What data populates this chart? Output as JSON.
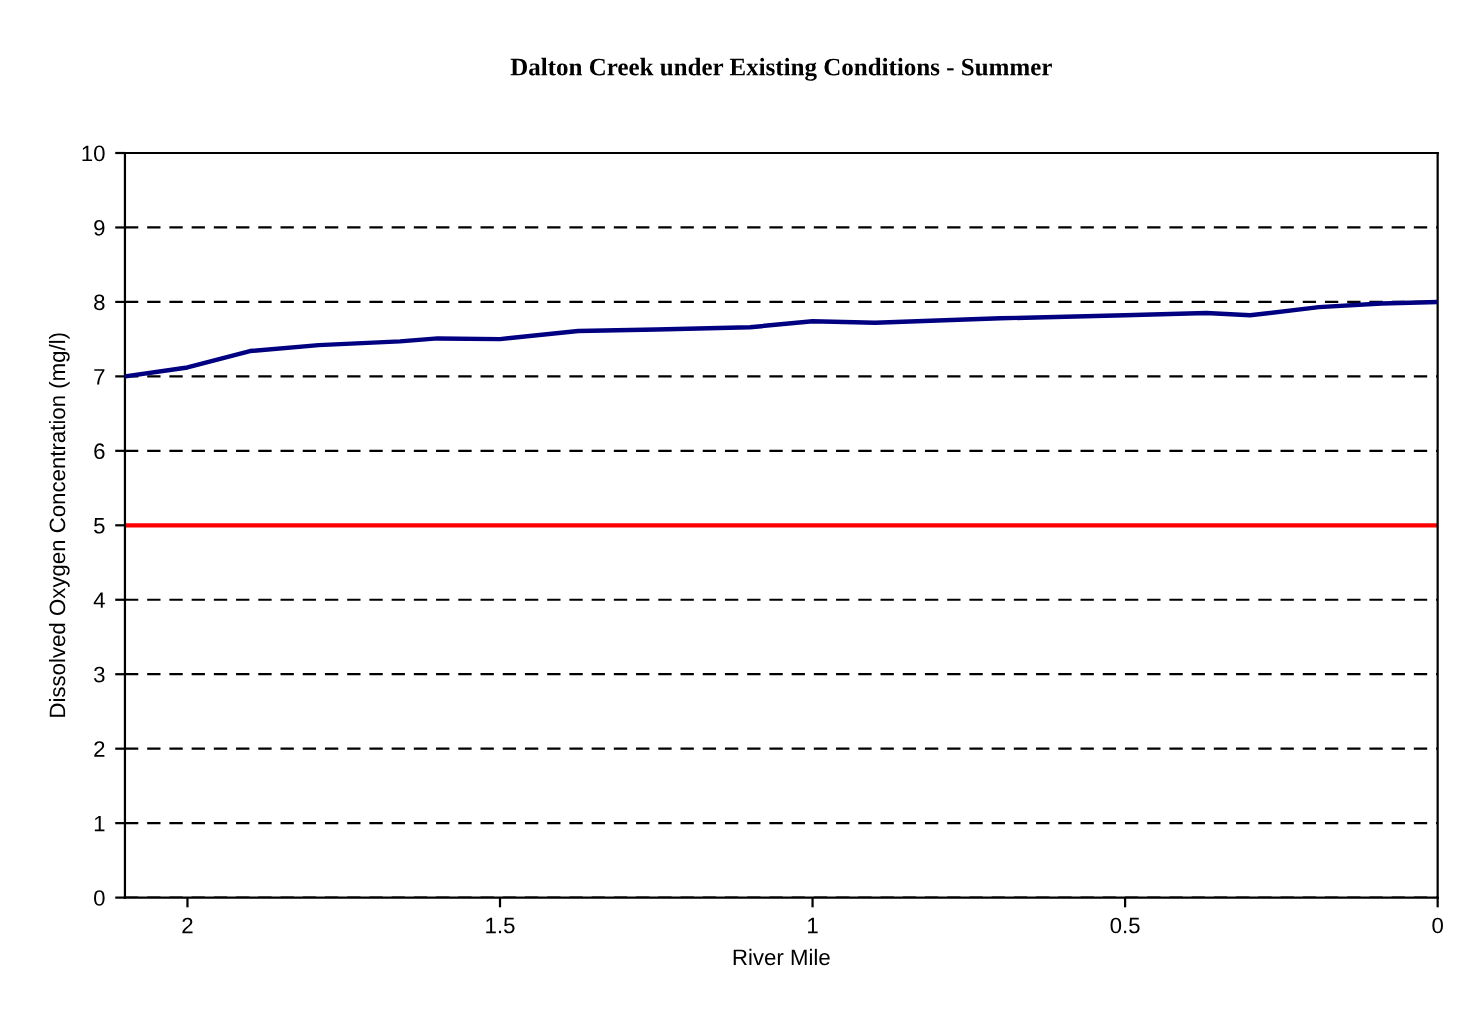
{
  "chart_data": {
    "type": "line",
    "title": "Dalton Creek under Existing Conditions - Summer",
    "xlabel": "River Mile",
    "ylabel": "Dissolved Oxygen Concentration (mg/l)",
    "x": [
      2.1,
      2.0,
      1.9,
      1.79,
      1.66,
      1.6,
      1.5,
      1.375,
      1.25,
      1.1,
      1.0,
      0.9,
      0.7,
      0.5,
      0.37,
      0.3,
      0.19,
      0.09,
      0
    ],
    "series": [
      {
        "color": "#000080",
        "values": [
          7.0,
          7.12,
          7.34,
          7.42,
          7.47,
          7.51,
          7.5,
          7.61,
          7.63,
          7.66,
          7.74,
          7.72,
          7.78,
          7.82,
          7.85,
          7.82,
          7.93,
          7.98,
          8.0
        ]
      }
    ],
    "xlim": [
      2.1,
      0
    ],
    "xticks": [
      2,
      1.5,
      1,
      0.5,
      0
    ],
    "ylim": [
      0,
      10
    ],
    "yticks": [
      0,
      1,
      2,
      3,
      4,
      5,
      6,
      7,
      8,
      9,
      10
    ],
    "ref_lines": [
      {
        "axis": "y",
        "value": 5,
        "color": "#ff0000",
        "line_style": "solid"
      }
    ],
    "grid": "y",
    "line_style": "solid",
    "marker": "none",
    "legend": false
  }
}
